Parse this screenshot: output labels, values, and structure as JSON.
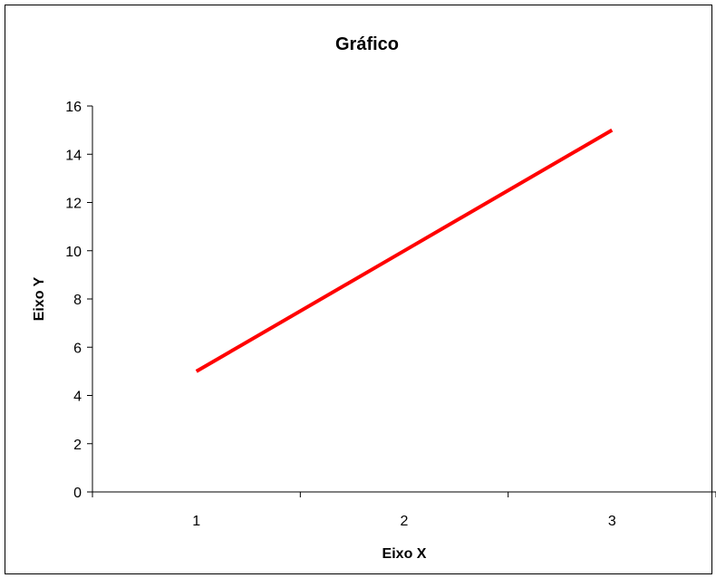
{
  "chart_data": {
    "type": "line",
    "title": "Gráfico",
    "xlabel": "Eixo X",
    "ylabel": "Eixo Y",
    "categories": [
      "1",
      "2",
      "3"
    ],
    "series": [
      {
        "values": [
          5,
          10,
          15
        ],
        "color": "#ff0000"
      }
    ],
    "ylim": [
      0,
      16
    ],
    "yticks": [
      0,
      2,
      4,
      6,
      8,
      10,
      12,
      14,
      16
    ],
    "grid": false,
    "legend": "none"
  }
}
